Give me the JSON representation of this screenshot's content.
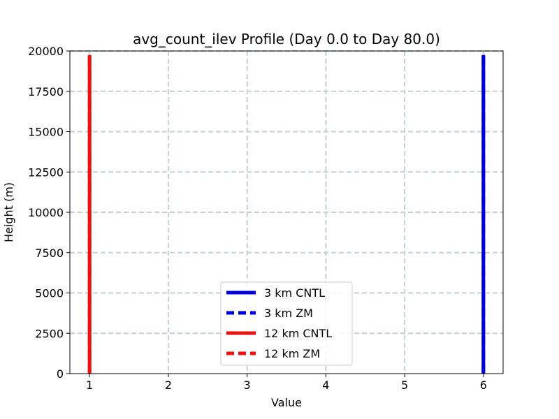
{
  "chart_data": {
    "type": "line",
    "title": "avg_count_ilev Profile (Day 0.0 to Day 80.0)",
    "xlabel": "Value",
    "ylabel": "Height (m)",
    "xlim": [
      0.75,
      6.25
    ],
    "ylim": [
      0,
      20000
    ],
    "xticks": [
      1,
      2,
      3,
      4,
      5,
      6
    ],
    "yticks": [
      0,
      2500,
      5000,
      7500,
      10000,
      12500,
      15000,
      17500,
      20000
    ],
    "grid": true,
    "legend_position": "lower center",
    "series": [
      {
        "name": "3 km CNTL",
        "color": "#0000dd",
        "style": "solid",
        "x": [
          6,
          6
        ],
        "y": [
          0,
          19750
        ]
      },
      {
        "name": "3 km ZM",
        "color": "#0000dd",
        "style": "dashed",
        "x": [
          6,
          6
        ],
        "y": [
          0,
          19750
        ]
      },
      {
        "name": "12 km CNTL",
        "color": "#ee1111",
        "style": "solid",
        "x": [
          1,
          1
        ],
        "y": [
          0,
          19750
        ]
      },
      {
        "name": "12 km ZM",
        "color": "#ee1111",
        "style": "dashed",
        "x": [
          1,
          1
        ],
        "y": [
          0,
          19750
        ]
      }
    ],
    "grid_color": "#c5d0cf"
  }
}
